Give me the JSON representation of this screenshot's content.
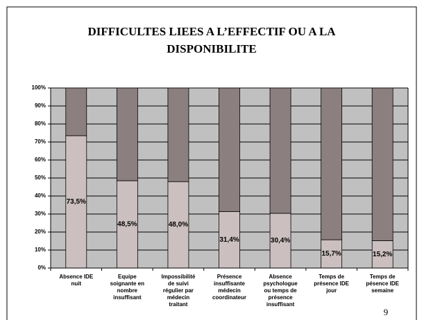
{
  "chart_data": {
    "type": "stacked_bar",
    "title": [
      "DIFFICULTES LIEES A L’EFFECTIF OU A LA",
      "DISPONIBILITE"
    ],
    "page_number": "9",
    "categories": [
      [
        "Absence IDE",
        "nuit"
      ],
      [
        "Equipe",
        "soignante en",
        "nombre",
        "insuffisant"
      ],
      [
        "Impossibilité",
        "de suivi",
        "régulier par",
        "médecin",
        "traitant"
      ],
      [
        "Présence",
        "insuffisante",
        "médecin",
        "coordinateur"
      ],
      [
        "Absence",
        "psychologue",
        "ou temps de",
        "présence",
        "insuffisant"
      ],
      [
        "Temps de",
        "présence IDE",
        "jour"
      ],
      [
        "Temps de",
        "pésence IDE",
        "semaine"
      ]
    ],
    "series": [
      {
        "color": "#cbbfbf",
        "values": [
          73.5,
          48.5,
          48.0,
          31.4,
          30.4,
          15.7,
          15.2
        ],
        "value_labels": [
          "73,5%",
          "48,5%",
          "48,0%",
          "31,4%",
          "30,4%",
          "15,7%",
          "15,2%"
        ]
      },
      {
        "color": "#8c7f7f",
        "values": [
          26.5,
          51.5,
          52.0,
          68.6,
          69.6,
          84.3,
          84.8
        ]
      }
    ],
    "ylim": [
      0,
      100
    ],
    "yticks": [
      {
        "value": 0,
        "label": "0%"
      },
      {
        "value": 10,
        "label": "10%"
      },
      {
        "value": 20,
        "label": "20%"
      },
      {
        "value": 30,
        "label": "30%"
      },
      {
        "value": 40,
        "label": "40%"
      },
      {
        "value": 50,
        "label": "50%"
      },
      {
        "value": 60,
        "label": "60%"
      },
      {
        "value": 70,
        "label": "70%"
      },
      {
        "value": 80,
        "label": "80%"
      },
      {
        "value": 90,
        "label": "90%"
      },
      {
        "value": 100,
        "label": "100%"
      }
    ],
    "grid": true,
    "plot_background": "#c0c0c0"
  }
}
